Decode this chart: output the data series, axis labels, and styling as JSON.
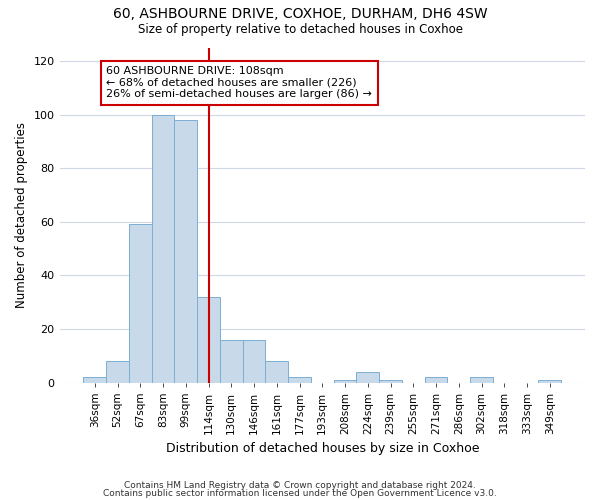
{
  "title": "60, ASHBOURNE DRIVE, COXHOE, DURHAM, DH6 4SW",
  "subtitle": "Size of property relative to detached houses in Coxhoe",
  "xlabel": "Distribution of detached houses by size in Coxhoe",
  "ylabel": "Number of detached properties",
  "bar_color": "#c8daea",
  "bar_edge_color": "#7bafd4",
  "categories": [
    "36sqm",
    "52sqm",
    "67sqm",
    "83sqm",
    "99sqm",
    "114sqm",
    "130sqm",
    "146sqm",
    "161sqm",
    "177sqm",
    "193sqm",
    "208sqm",
    "224sqm",
    "239sqm",
    "255sqm",
    "271sqm",
    "286sqm",
    "302sqm",
    "318sqm",
    "333sqm",
    "349sqm"
  ],
  "values": [
    2,
    8,
    59,
    100,
    98,
    32,
    16,
    16,
    8,
    2,
    0,
    1,
    4,
    1,
    0,
    2,
    0,
    2,
    0,
    0,
    1
  ],
  "ylim": [
    0,
    125
  ],
  "yticks": [
    0,
    20,
    40,
    60,
    80,
    100,
    120
  ],
  "property_line_x": 5.0,
  "annotation_text": "60 ASHBOURNE DRIVE: 108sqm\n← 68% of detached houses are smaller (226)\n26% of semi-detached houses are larger (86) →",
  "annotation_box_color": "#ffffff",
  "annotation_box_edge": "#cc0000",
  "line_color": "#cc0000",
  "footer1": "Contains HM Land Registry data © Crown copyright and database right 2024.",
  "footer2": "Contains public sector information licensed under the Open Government Licence v3.0.",
  "background_color": "#ffffff",
  "plot_bg_color": "#ffffff",
  "grid_color": "#d0d8e8"
}
